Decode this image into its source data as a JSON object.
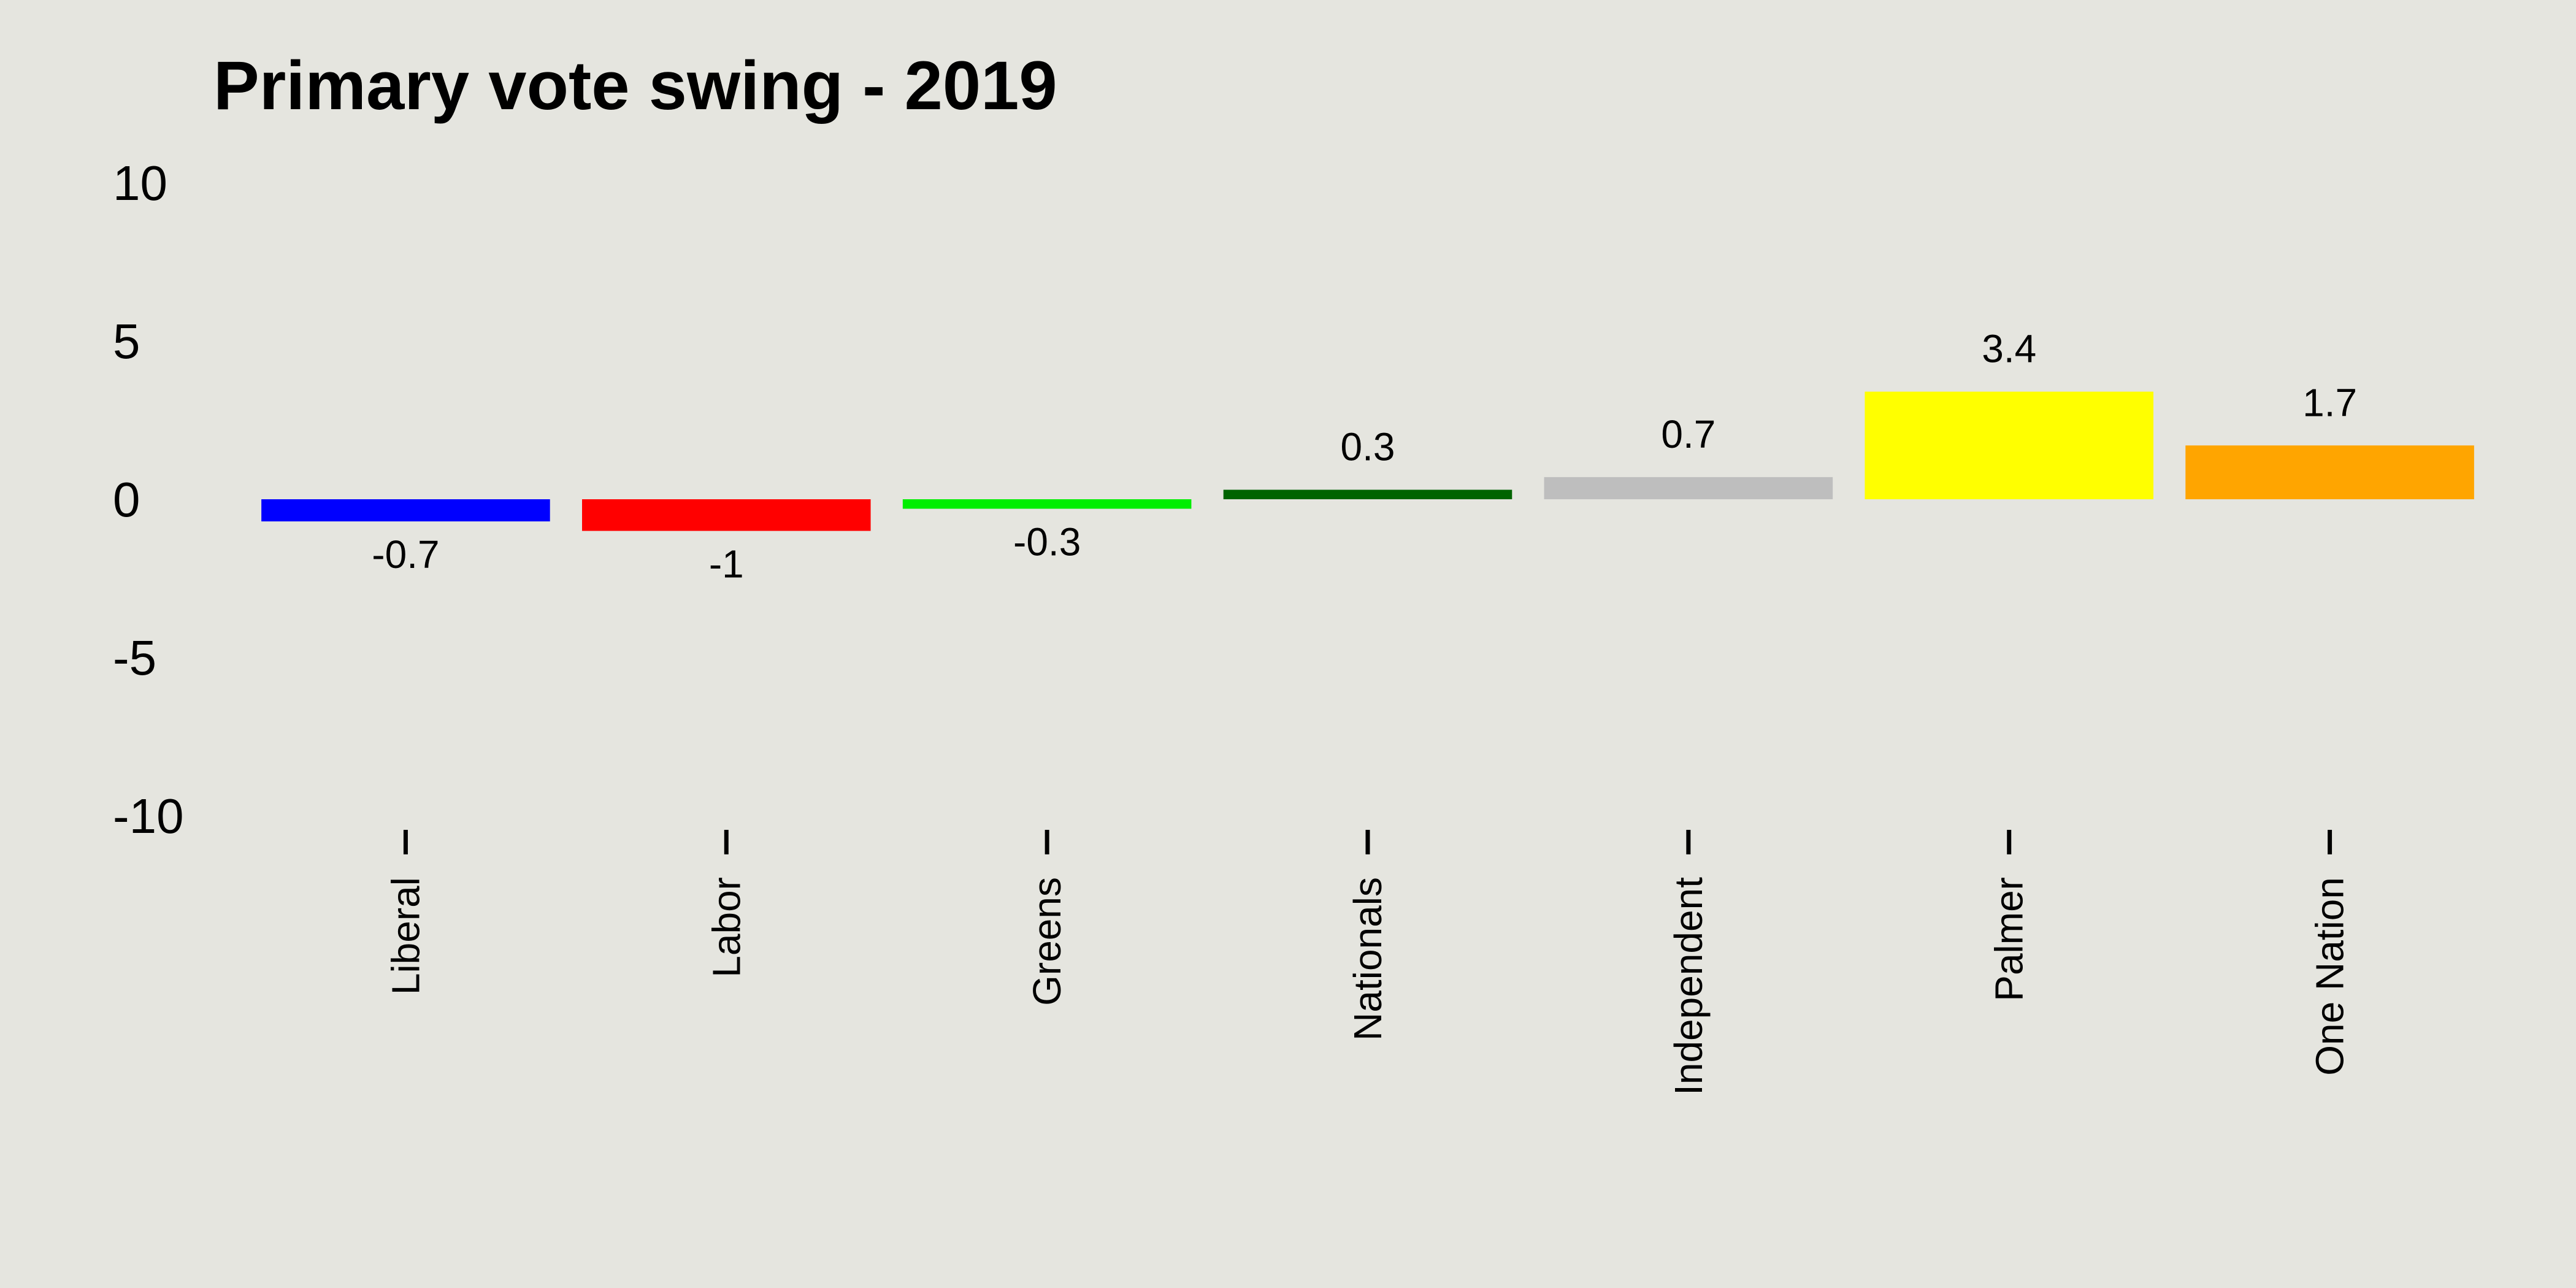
{
  "chart_data": {
    "type": "bar",
    "title": "Primary vote swing - 2019",
    "xlabel": "",
    "ylabel": "",
    "ylim": [
      -10,
      10
    ],
    "yticks": [
      10,
      5,
      0,
      -5,
      -10
    ],
    "ytick_labels": [
      "10",
      "5",
      "0",
      "-5",
      "-10"
    ],
    "categories": [
      "Liberal",
      "Labor",
      "Greens",
      "Nationals",
      "Independent",
      "Palmer",
      "One Nation"
    ],
    "values": [
      -0.7,
      -1,
      -0.3,
      0.3,
      0.7,
      3.4,
      1.7
    ],
    "value_labels": [
      "-0.7",
      "-1",
      "-0.3",
      "0.3",
      "0.7",
      "3.4",
      "1.7"
    ],
    "colors": [
      "#0000ff",
      "#ff0000",
      "#00ee00",
      "#006400",
      "#bebebe",
      "#ffff00",
      "#ffa500"
    ],
    "grid": false,
    "legend": "none",
    "background": "#e5e5df"
  }
}
